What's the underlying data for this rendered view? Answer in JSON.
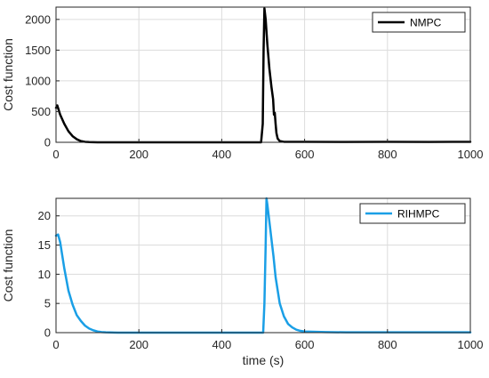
{
  "chart_data": [
    {
      "type": "line",
      "title": "",
      "xlabel": "",
      "ylabel": "Cost function",
      "xlim": [
        0,
        1000
      ],
      "ylim": [
        0,
        2200
      ],
      "xticks": [
        0,
        200,
        400,
        600,
        800,
        1000
      ],
      "yticks": [
        0,
        500,
        1000,
        1500,
        2000
      ],
      "grid": true,
      "legend": "top-right",
      "series": [
        {
          "name": "NMPC",
          "color": "#000000",
          "x": [
            0,
            3,
            10,
            20,
            30,
            40,
            50,
            60,
            70,
            80,
            100,
            150,
            200,
            300,
            400,
            450,
            495,
            499,
            501,
            503,
            506,
            510,
            515,
            520,
            524,
            526,
            528,
            530,
            532,
            535,
            540,
            550,
            600,
            700,
            800,
            900,
            1000
          ],
          "y": [
            560,
            600,
            450,
            300,
            180,
            100,
            50,
            20,
            8,
            3,
            0,
            0,
            0,
            0,
            0,
            0,
            0,
            300,
            1500,
            2180,
            2000,
            1600,
            1200,
            900,
            700,
            450,
            480,
            300,
            150,
            60,
            20,
            8,
            8,
            5,
            8,
            5,
            8
          ]
        }
      ]
    },
    {
      "type": "line",
      "title": "",
      "xlabel": "time (s)",
      "ylabel": "Cost function",
      "xlim": [
        0,
        1000
      ],
      "ylim": [
        0,
        23
      ],
      "xticks": [
        0,
        200,
        400,
        600,
        800,
        1000
      ],
      "yticks": [
        0,
        5,
        10,
        15,
        20
      ],
      "grid": true,
      "legend": "top-right",
      "series": [
        {
          "name": "RIHMPC",
          "color": "#1a9fe6",
          "x": [
            0,
            5,
            10,
            20,
            30,
            40,
            50,
            60,
            70,
            80,
            90,
            100,
            110,
            120,
            150,
            200,
            300,
            400,
            480,
            500,
            503,
            506,
            508,
            510,
            515,
            520,
            525,
            530,
            540,
            550,
            560,
            570,
            580,
            590,
            600,
            650,
            700,
            800,
            900,
            1000
          ],
          "y": [
            16.6,
            16.8,
            15.5,
            11.0,
            7.2,
            4.8,
            3.0,
            2.0,
            1.2,
            0.7,
            0.4,
            0.2,
            0.1,
            0.05,
            0,
            0,
            0,
            0,
            0,
            0,
            5.0,
            15.0,
            23.0,
            22.0,
            19.0,
            16.0,
            13.0,
            9.5,
            5.0,
            2.8,
            1.5,
            0.9,
            0.5,
            0.3,
            0.2,
            0.1,
            0.05,
            0.05,
            0.05,
            0.05
          ]
        }
      ]
    }
  ]
}
